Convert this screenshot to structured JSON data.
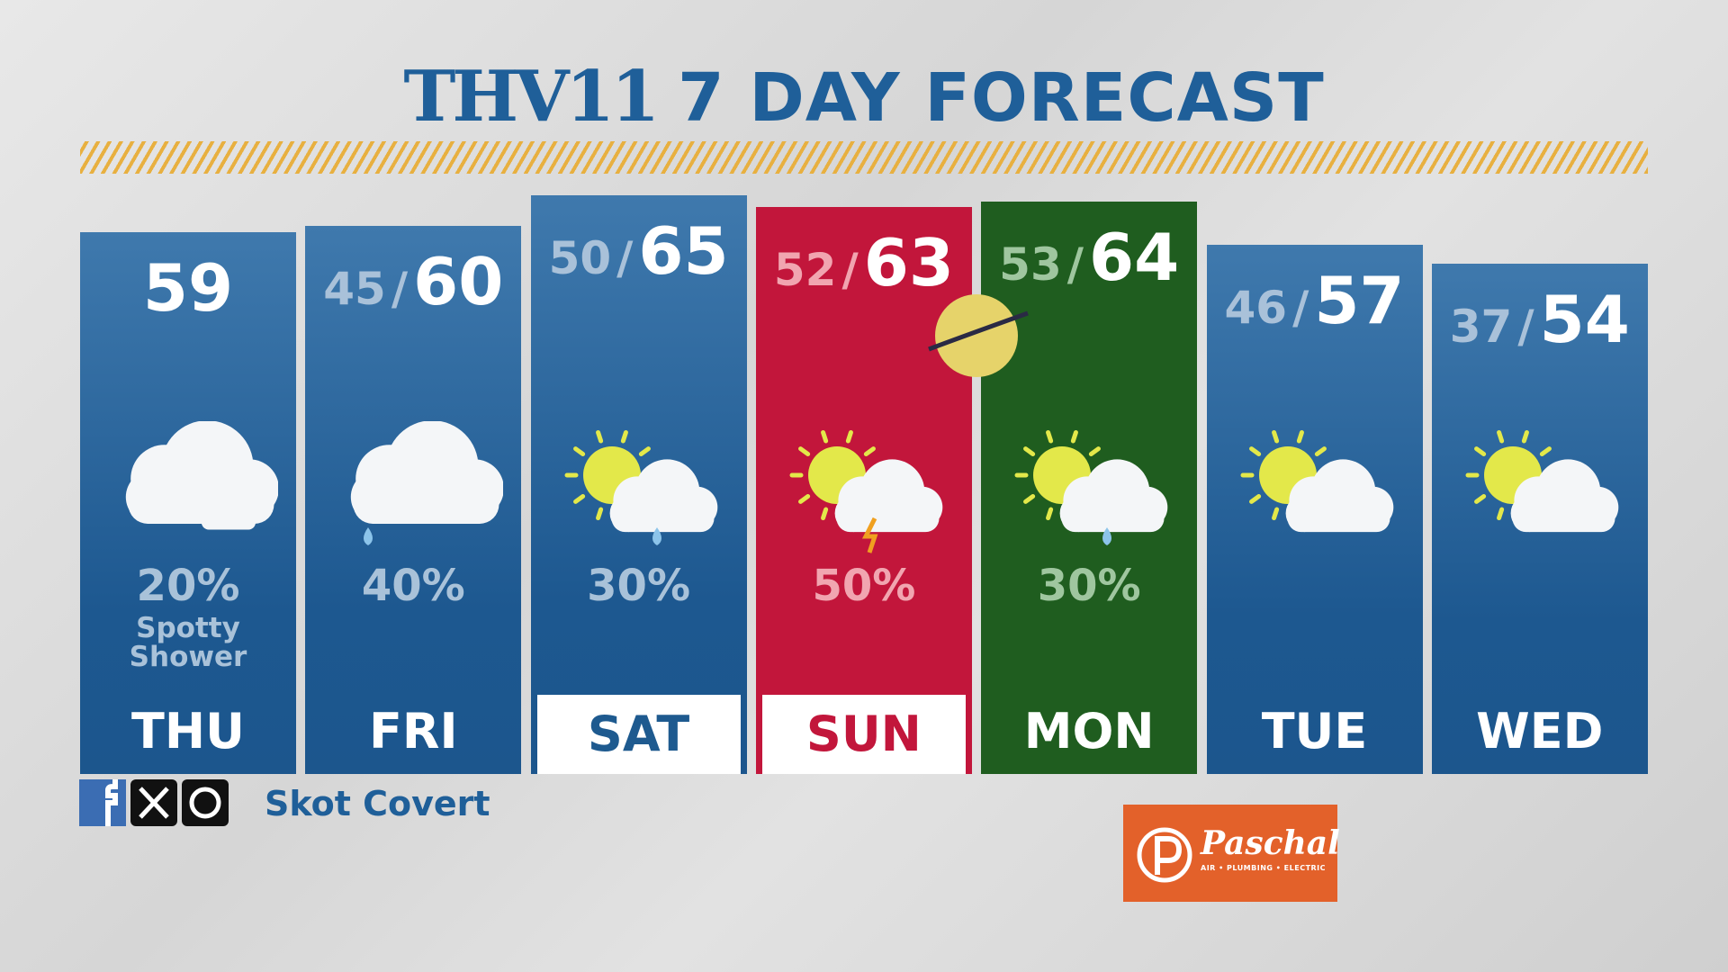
{
  "header": {
    "logo": "THV11",
    "title": "7 DAY FORECAST"
  },
  "separator": "/",
  "days": [
    {
      "day": "THU",
      "high": 59,
      "precip": "20%",
      "note": "Spotty Shower"
    },
    {
      "day": "FRI",
      "low": 45,
      "high": 60,
      "precip": "40%"
    },
    {
      "day": "SAT",
      "low": 50,
      "high": 65,
      "precip": "30%"
    },
    {
      "day": "SUN",
      "low": 52,
      "high": 63,
      "precip": "50%"
    },
    {
      "day": "MON",
      "low": 53,
      "high": 64,
      "precip": "30%"
    },
    {
      "day": "TUE",
      "low": 46,
      "high": 57
    },
    {
      "day": "WED",
      "low": 37,
      "high": 54
    }
  ],
  "social": {
    "handle": "Skot Covert"
  },
  "sponsor": {
    "name": "Paschal",
    "tagline": "AIR • PLUMBING • ELECTRIC"
  }
}
